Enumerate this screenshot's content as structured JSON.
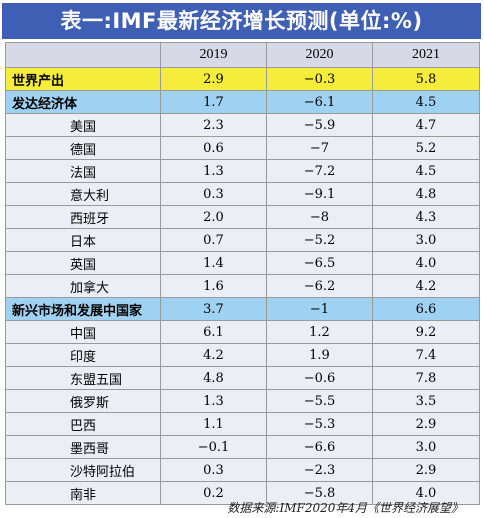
{
  "title": "表一:IMF最新经济增长预测(单位:%)",
  "columns": [
    "2019",
    "2020",
    "2021"
  ],
  "rows": [
    {
      "name": "世界产出",
      "v2019": "2.9",
      "v2020": "−0.3",
      "v2021": "5.8"
    },
    {
      "name": "发达经济体",
      "v2019": "1.7",
      "v2020": "−6.1",
      "v2021": "4.5"
    },
    {
      "name": "美国",
      "v2019": "2.3",
      "v2020": "−5.9",
      "v2021": "4.7"
    },
    {
      "name": "德国",
      "v2019": "0.6",
      "v2020": "−7",
      "v2021": "5.2"
    },
    {
      "name": "法国",
      "v2019": "1.3",
      "v2020": "−7.2",
      "v2021": "4.5"
    },
    {
      "name": "意大利",
      "v2019": "0.3",
      "v2020": "−9.1",
      "v2021": "4.8"
    },
    {
      "name": "西班牙",
      "v2019": "2.0",
      "v2020": "−8",
      "v2021": "4.3"
    },
    {
      "name": "日本",
      "v2019": "0.7",
      "v2020": "−5.2",
      "v2021": "3.0"
    },
    {
      "name": "英国",
      "v2019": "1.4",
      "v2020": "−6.5",
      "v2021": "4.0"
    },
    {
      "name": "加拿大",
      "v2019": "1.6",
      "v2020": "−6.2",
      "v2021": "4.2"
    },
    {
      "name": "新兴市场和发展中国家",
      "v2019": "3.7",
      "v2020": "−1",
      "v2021": "6.6"
    },
    {
      "name": "中国",
      "v2019": "6.1",
      "v2020": "1.2",
      "v2021": "9.2"
    },
    {
      "name": "印度",
      "v2019": "4.2",
      "v2020": "1.9",
      "v2021": "7.4"
    },
    {
      "name": "东盟五国",
      "v2019": "4.8",
      "v2020": "−0.6",
      "v2021": "7.8"
    },
    {
      "name": "俄罗斯",
      "v2019": "1.3",
      "v2020": "−5.5",
      "v2021": "3.5"
    },
    {
      "name": "巴西",
      "v2019": "1.1",
      "v2020": "−5.3",
      "v2021": "2.9"
    },
    {
      "name": "墨西哥",
      "v2019": "−0.1",
      "v2020": "−6.6",
      "v2021": "3.0"
    },
    {
      "name": "沙特阿拉伯",
      "v2019": "0.3",
      "v2020": "−2.3",
      "v2021": "2.9"
    },
    {
      "name": "南非",
      "v2019": "0.2",
      "v2020": "−5.8",
      "v2021": "4.0"
    }
  ],
  "source": "数据来源:IMF2020年4月《世界经济展望》",
  "colors": {
    "title_bg": "#3f5fb5",
    "header_bg": "#d7dae6",
    "world_bg": "#f5ec3c",
    "group_bg": "#9fd2f2",
    "row_bg": "#eceef5"
  }
}
